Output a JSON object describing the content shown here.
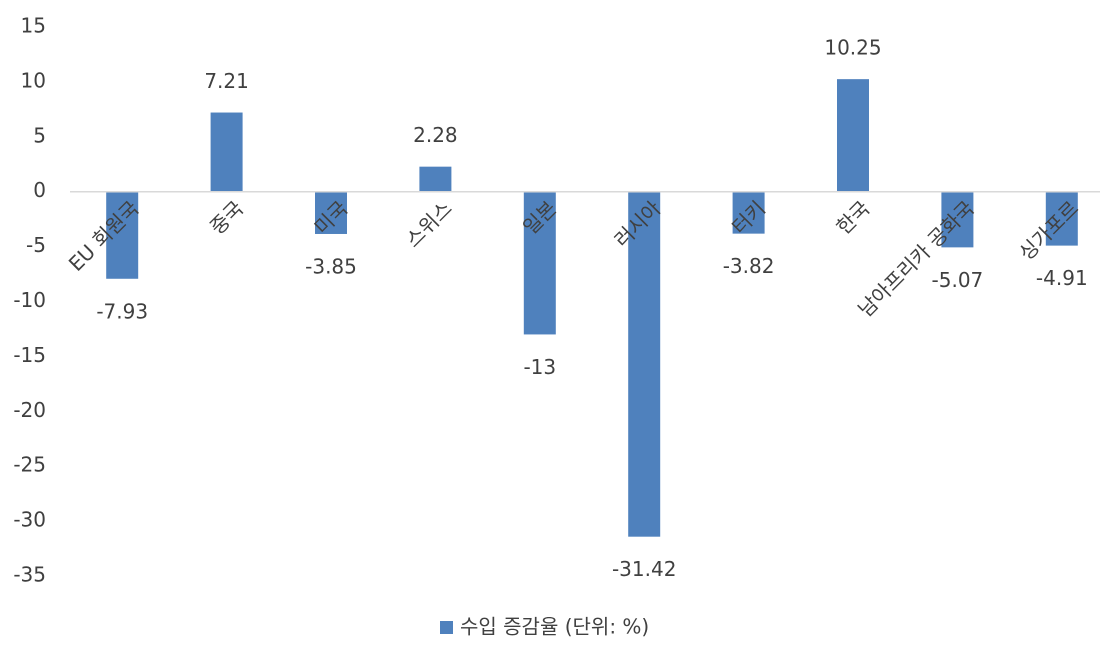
{
  "chart_data": {
    "type": "bar",
    "categories": [
      "EU 회원국",
      "중국",
      "미국",
      "스위스",
      "일본",
      "러시아",
      "터키",
      "한국",
      "남아프리카 공화국",
      "싱가포르"
    ],
    "series": [
      {
        "name": "수입 증감율 (단위: %)",
        "color": "#4f81bd",
        "values": [
          -7.93,
          7.21,
          -3.85,
          2.28,
          -13,
          -31.42,
          -3.82,
          10.25,
          -5.07,
          -4.91
        ]
      }
    ],
    "ylim": [
      -35,
      15
    ],
    "yticks": [
      -35,
      -30,
      -25,
      -20,
      -15,
      -10,
      -5,
      0,
      5,
      10,
      15
    ],
    "legend": "bottom"
  }
}
